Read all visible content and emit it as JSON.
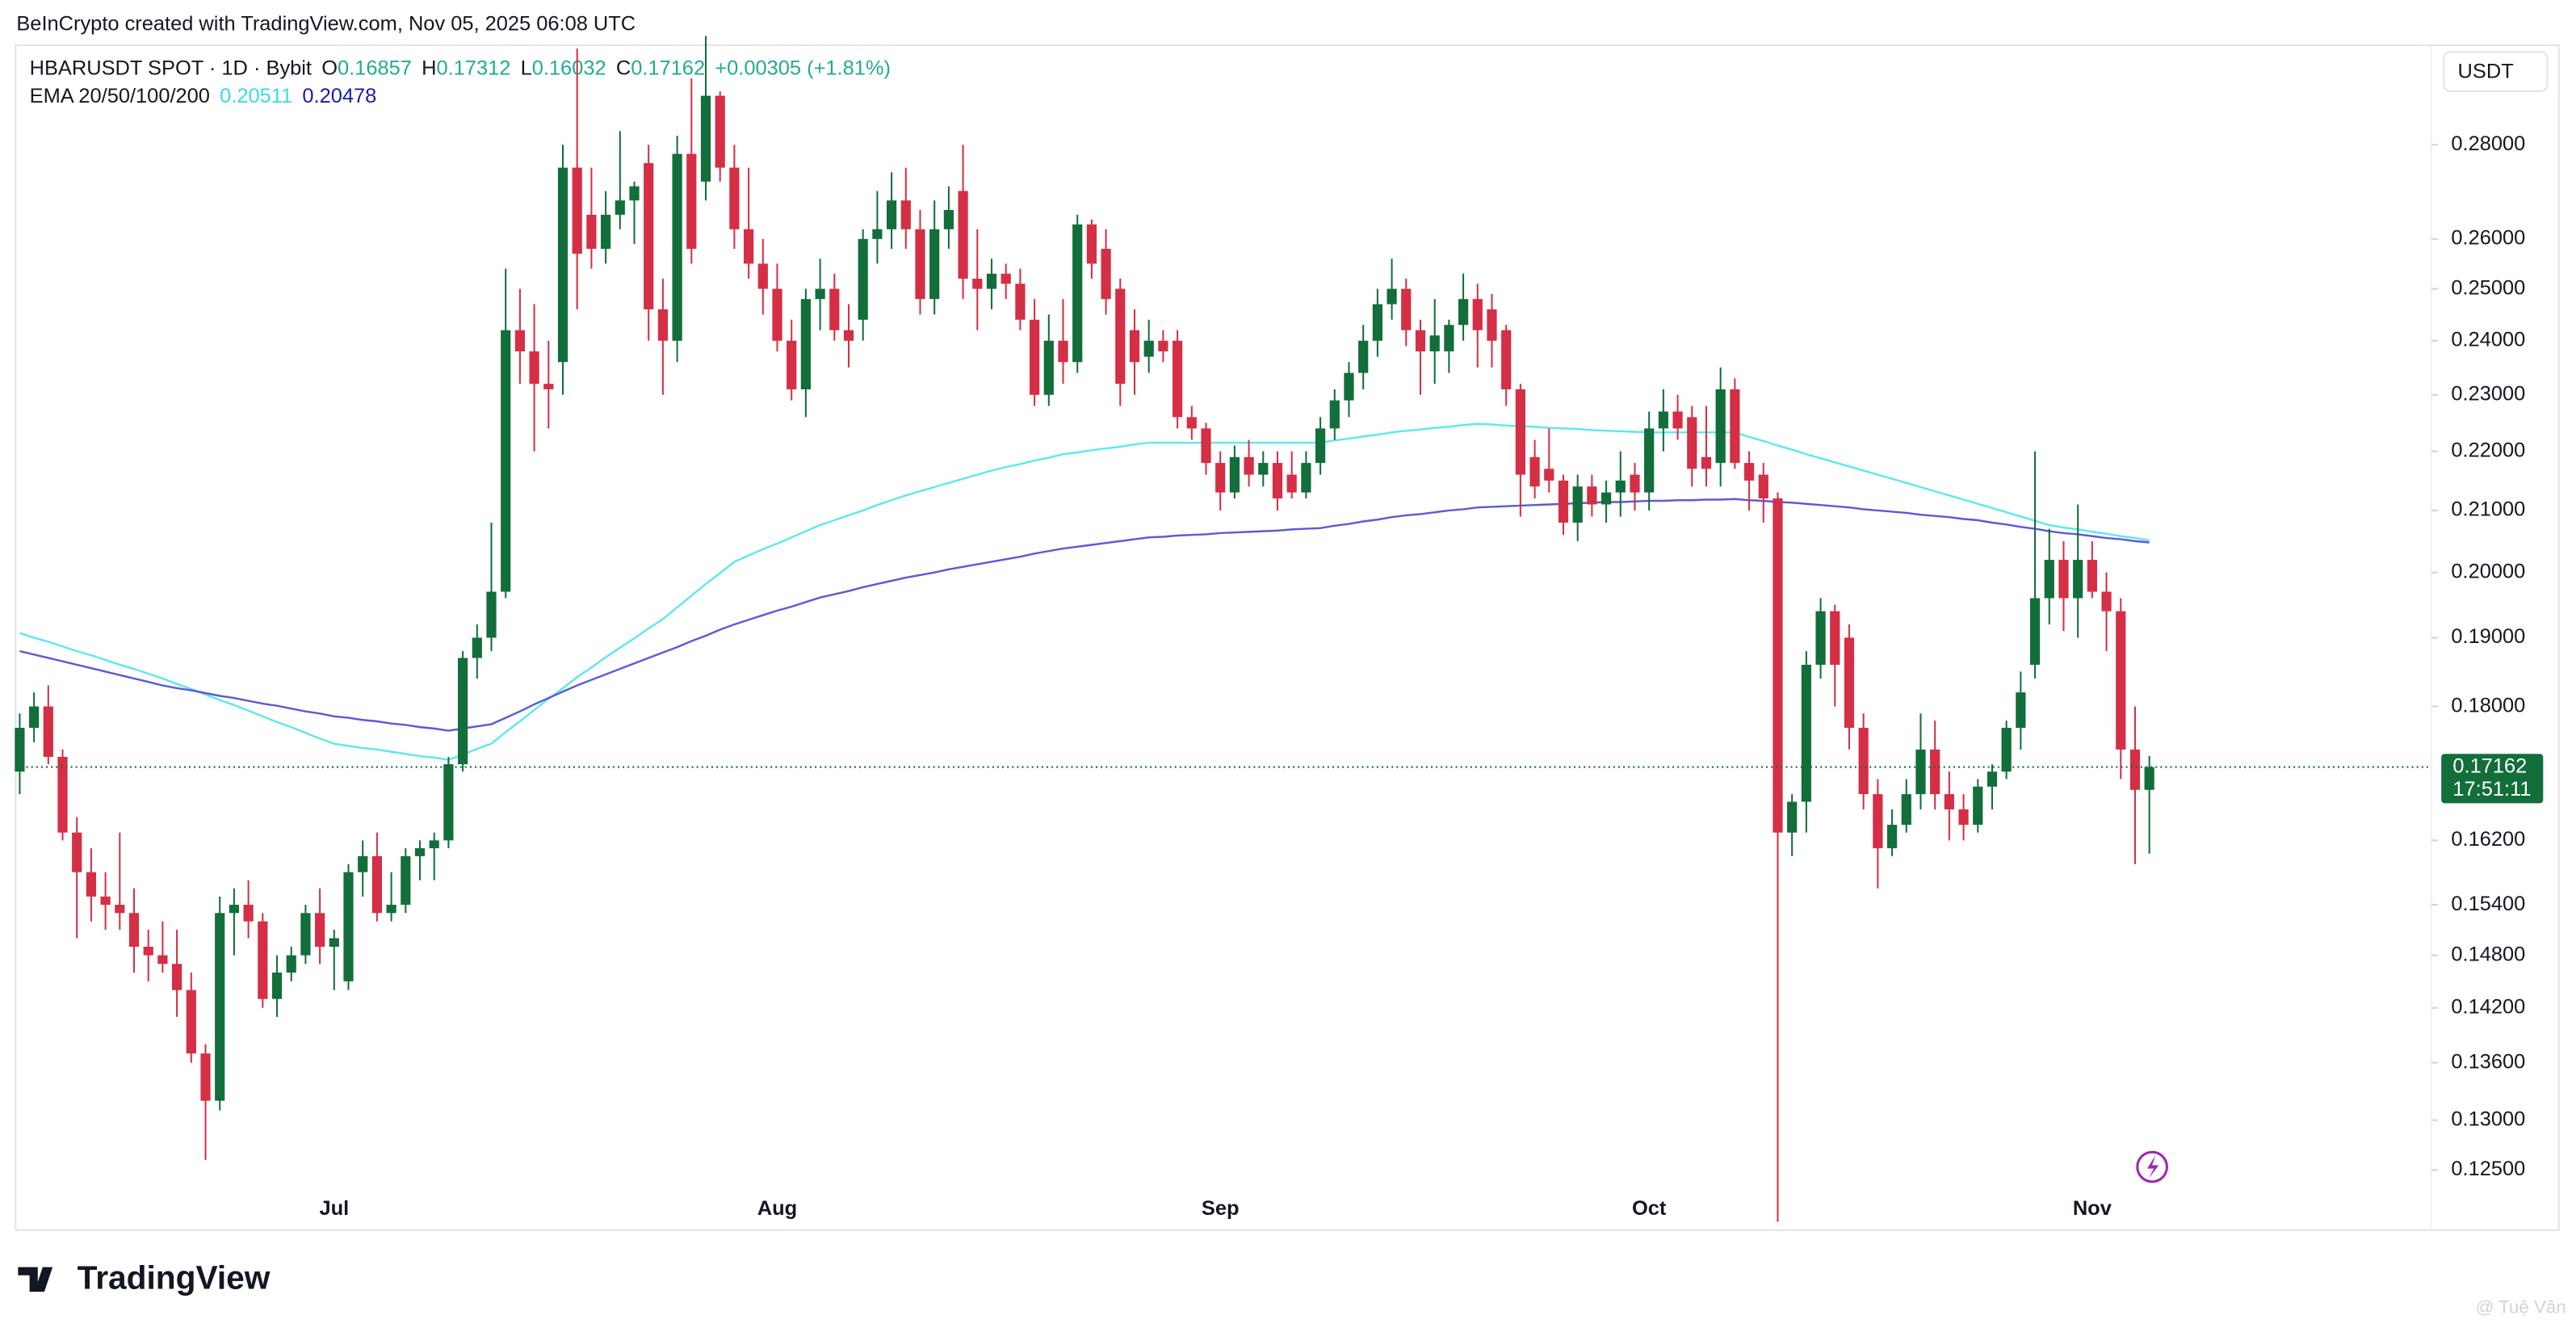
{
  "header": {
    "credit": "BeInCrypto created with TradingView.com, Nov 05, 2025 06:08 UTC"
  },
  "chart_data": {
    "type": "candlestick",
    "symbol": "HBARUSDT SPOT · 1D · Bybit",
    "ohlc_labels": [
      "O",
      "H",
      "L",
      "C"
    ],
    "change": "+0.00305 (+1.81%)",
    "indicator": "EMA 20/50/100/200",
    "currency": "USDT",
    "countdown": "17:51:11",
    "log_scale": true,
    "grid": false,
    "up_color": "#126e3a",
    "down_color": "#d42f45",
    "ylim": [
      0.1193,
      0.3026
    ],
    "yticks": [
      {
        "value": 0.28,
        "label": "0.28000"
      },
      {
        "value": 0.26,
        "label": "0.26000"
      },
      {
        "value": 0.25,
        "label": "0.25000"
      },
      {
        "value": 0.24,
        "label": "0.24000"
      },
      {
        "value": 0.23,
        "label": "0.23000"
      },
      {
        "value": 0.22,
        "label": "0.22000"
      },
      {
        "value": 0.21,
        "label": "0.21000"
      },
      {
        "value": 0.2,
        "label": "0.20000"
      },
      {
        "value": 0.19,
        "label": "0.19000"
      },
      {
        "value": 0.18,
        "label": "0.18000"
      },
      {
        "value": 0.162,
        "label": "0.16200"
      },
      {
        "value": 0.154,
        "label": "0.15400"
      },
      {
        "value": 0.148,
        "label": "0.14800"
      },
      {
        "value": 0.142,
        "label": "0.14200"
      },
      {
        "value": 0.136,
        "label": "0.13600"
      },
      {
        "value": 0.13,
        "label": "0.13000"
      },
      {
        "value": 0.125,
        "label": "0.12500"
      }
    ],
    "categories": [
      null,
      null,
      null,
      null,
      null,
      null,
      null,
      null,
      null,
      null,
      null,
      null,
      null,
      null,
      null,
      null,
      null,
      null,
      null,
      null,
      null,
      null,
      "Jul",
      null,
      null,
      null,
      null,
      null,
      null,
      null,
      null,
      null,
      null,
      null,
      null,
      null,
      null,
      null,
      null,
      null,
      null,
      null,
      null,
      null,
      null,
      null,
      null,
      null,
      null,
      null,
      null,
      null,
      null,
      "Aug",
      null,
      null,
      null,
      null,
      null,
      null,
      null,
      null,
      null,
      null,
      null,
      null,
      null,
      null,
      null,
      null,
      null,
      null,
      null,
      null,
      null,
      null,
      null,
      null,
      null,
      null,
      null,
      null,
      null,
      null,
      "Sep",
      null,
      null,
      null,
      null,
      null,
      null,
      null,
      null,
      null,
      null,
      null,
      null,
      null,
      null,
      null,
      null,
      null,
      null,
      null,
      null,
      null,
      null,
      null,
      null,
      null,
      null,
      null,
      null,
      null,
      "Oct",
      null,
      null,
      null,
      null,
      null,
      null,
      null,
      null,
      null,
      null,
      null,
      null,
      null,
      null,
      null,
      null,
      null,
      null,
      null,
      null,
      null,
      null,
      null,
      null,
      null,
      null,
      null,
      null,
      null,
      null,
      "Nov",
      null,
      null,
      null,
      null
    ],
    "open": [
      0.171,
      0.177,
      0.18,
      0.173,
      0.163,
      0.158,
      0.155,
      0.154,
      0.153,
      0.149,
      0.148,
      0.147,
      0.144,
      0.137,
      0.132,
      0.153,
      0.154,
      0.152,
      0.143,
      0.146,
      0.148,
      0.153,
      0.149,
      0.145,
      0.158,
      0.16,
      0.153,
      0.154,
      0.16,
      0.161,
      0.162,
      0.172,
      0.187,
      0.19,
      0.197,
      0.242,
      0.238,
      0.232,
      0.236,
      0.275,
      0.265,
      0.258,
      0.265,
      0.268,
      0.276,
      0.246,
      0.24,
      0.278,
      0.272,
      0.291,
      0.275,
      0.262,
      0.255,
      0.25,
      0.24,
      0.231,
      0.248,
      0.25,
      0.242,
      0.244,
      0.26,
      0.262,
      0.268,
      0.262,
      0.248,
      0.262,
      0.27,
      0.252,
      0.25,
      0.253,
      0.251,
      0.244,
      0.23,
      0.24,
      0.236,
      0.263,
      0.258,
      0.25,
      0.242,
      0.237,
      0.24,
      0.24,
      0.226,
      0.224,
      0.218,
      0.213,
      0.219,
      0.216,
      0.218,
      0.216,
      0.213,
      0.218,
      0.224,
      0.229,
      0.234,
      0.24,
      0.247,
      0.25,
      0.242,
      0.238,
      0.238,
      0.243,
      0.248,
      0.246,
      0.242,
      0.231,
      0.219,
      0.217,
      0.215,
      0.208,
      0.214,
      0.211,
      0.213,
      0.216,
      0.213,
      0.224,
      0.227,
      0.226,
      0.219,
      0.218,
      0.231,
      0.218,
      0.216,
      0.212,
      0.163,
      0.167,
      0.186,
      0.194,
      0.19,
      0.177,
      0.168,
      0.161,
      0.164,
      0.168,
      0.174,
      0.168,
      0.166,
      0.164,
      0.169,
      0.171,
      0.177,
      0.186,
      0.196,
      0.202,
      0.196,
      0.202,
      0.197,
      0.194,
      0.174,
      0.16857
    ],
    "high": [
      0.179,
      0.182,
      0.183,
      0.174,
      0.165,
      0.161,
      0.158,
      0.163,
      0.156,
      0.151,
      0.152,
      0.151,
      0.146,
      0.138,
      0.155,
      0.156,
      0.157,
      0.153,
      0.148,
      0.149,
      0.154,
      0.156,
      0.151,
      0.159,
      0.162,
      0.163,
      0.158,
      0.161,
      0.162,
      0.163,
      0.173,
      0.188,
      0.192,
      0.208,
      0.254,
      0.25,
      0.247,
      0.24,
      0.28,
      0.302,
      0.275,
      0.27,
      0.283,
      0.272,
      0.28,
      0.252,
      0.282,
      0.295,
      0.305,
      0.292,
      0.28,
      0.275,
      0.26,
      0.255,
      0.244,
      0.25,
      0.256,
      0.253,
      0.247,
      0.262,
      0.27,
      0.274,
      0.275,
      0.266,
      0.268,
      0.271,
      0.28,
      0.262,
      0.256,
      0.255,
      0.254,
      0.248,
      0.245,
      0.248,
      0.265,
      0.264,
      0.262,
      0.252,
      0.246,
      0.244,
      0.242,
      0.242,
      0.228,
      0.225,
      0.22,
      0.221,
      0.222,
      0.22,
      0.22,
      0.22,
      0.22,
      0.226,
      0.231,
      0.236,
      0.243,
      0.25,
      0.256,
      0.252,
      0.244,
      0.248,
      0.244,
      0.253,
      0.251,
      0.249,
      0.243,
      0.232,
      0.222,
      0.224,
      0.216,
      0.216,
      0.216,
      0.215,
      0.22,
      0.218,
      0.227,
      0.231,
      0.23,
      0.228,
      0.228,
      0.235,
      0.233,
      0.22,
      0.218,
      0.213,
      0.168,
      0.188,
      0.196,
      0.195,
      0.192,
      0.179,
      0.17,
      0.166,
      0.17,
      0.179,
      0.178,
      0.171,
      0.168,
      0.17,
      0.172,
      0.178,
      0.185,
      0.22,
      0.207,
      0.205,
      0.211,
      0.205,
      0.2,
      0.196,
      0.18,
      0.17312
    ],
    "low": [
      0.168,
      0.175,
      0.172,
      0.162,
      0.15,
      0.152,
      0.151,
      0.151,
      0.146,
      0.145,
      0.146,
      0.141,
      0.136,
      0.126,
      0.131,
      0.148,
      0.15,
      0.142,
      0.141,
      0.145,
      0.147,
      0.147,
      0.144,
      0.144,
      0.155,
      0.152,
      0.152,
      0.153,
      0.157,
      0.157,
      0.161,
      0.171,
      0.184,
      0.188,
      0.196,
      0.232,
      0.22,
      0.224,
      0.23,
      0.246,
      0.254,
      0.255,
      0.262,
      0.259,
      0.24,
      0.23,
      0.236,
      0.255,
      0.268,
      0.272,
      0.258,
      0.252,
      0.245,
      0.238,
      0.229,
      0.226,
      0.242,
      0.24,
      0.235,
      0.24,
      0.255,
      0.258,
      0.258,
      0.245,
      0.245,
      0.258,
      0.248,
      0.242,
      0.246,
      0.248,
      0.242,
      0.228,
      0.228,
      0.232,
      0.234,
      0.252,
      0.245,
      0.228,
      0.23,
      0.234,
      0.236,
      0.224,
      0.222,
      0.216,
      0.21,
      0.212,
      0.214,
      0.214,
      0.21,
      0.212,
      0.212,
      0.216,
      0.222,
      0.226,
      0.231,
      0.237,
      0.244,
      0.239,
      0.23,
      0.232,
      0.234,
      0.24,
      0.235,
      0.235,
      0.228,
      0.209,
      0.212,
      0.213,
      0.206,
      0.205,
      0.209,
      0.208,
      0.209,
      0.21,
      0.21,
      0.22,
      0.222,
      0.214,
      0.214,
      0.214,
      0.217,
      0.21,
      0.208,
      0.12,
      0.16,
      0.163,
      0.184,
      0.18,
      0.174,
      0.166,
      0.156,
      0.16,
      0.163,
      0.166,
      0.166,
      0.162,
      0.162,
      0.163,
      0.166,
      0.17,
      0.174,
      0.184,
      0.192,
      0.191,
      0.19,
      0.196,
      0.188,
      0.17,
      0.159,
      0.16032
    ],
    "close": [
      0.177,
      0.18,
      0.173,
      0.163,
      0.158,
      0.155,
      0.154,
      0.153,
      0.149,
      0.148,
      0.147,
      0.144,
      0.137,
      0.132,
      0.153,
      0.154,
      0.152,
      0.143,
      0.146,
      0.148,
      0.153,
      0.149,
      0.15,
      0.158,
      0.16,
      0.153,
      0.154,
      0.16,
      0.161,
      0.162,
      0.172,
      0.187,
      0.19,
      0.197,
      0.242,
      0.238,
      0.232,
      0.231,
      0.275,
      0.257,
      0.258,
      0.265,
      0.268,
      0.271,
      0.246,
      0.24,
      0.278,
      0.258,
      0.291,
      0.275,
      0.262,
      0.255,
      0.25,
      0.24,
      0.231,
      0.248,
      0.25,
      0.242,
      0.24,
      0.26,
      0.262,
      0.268,
      0.262,
      0.248,
      0.262,
      0.266,
      0.252,
      0.25,
      0.253,
      0.251,
      0.244,
      0.23,
      0.24,
      0.236,
      0.263,
      0.255,
      0.248,
      0.232,
      0.236,
      0.24,
      0.238,
      0.226,
      0.224,
      0.218,
      0.213,
      0.219,
      0.216,
      0.218,
      0.212,
      0.213,
      0.218,
      0.224,
      0.229,
      0.234,
      0.24,
      0.247,
      0.25,
      0.242,
      0.238,
      0.241,
      0.243,
      0.248,
      0.242,
      0.24,
      0.231,
      0.216,
      0.214,
      0.215,
      0.208,
      0.214,
      0.211,
      0.213,
      0.215,
      0.213,
      0.224,
      0.227,
      0.224,
      0.217,
      0.217,
      0.231,
      0.218,
      0.215,
      0.212,
      0.163,
      0.167,
      0.186,
      0.194,
      0.186,
      0.177,
      0.168,
      0.161,
      0.164,
      0.168,
      0.174,
      0.168,
      0.166,
      0.164,
      0.169,
      0.171,
      0.177,
      0.182,
      0.196,
      0.202,
      0.196,
      0.202,
      0.197,
      0.194,
      0.174,
      0.16857,
      0.17162
    ],
    "series": [
      {
        "color": "#5ee8f0",
        "values": [
          0.1907,
          0.19,
          0.1894,
          0.1887,
          0.188,
          0.1874,
          0.1867,
          0.186,
          0.1854,
          0.1847,
          0.184,
          0.1832,
          0.1825,
          0.1817,
          0.1809,
          0.1802,
          0.1794,
          0.1786,
          0.1778,
          0.1771,
          0.1763,
          0.1755,
          0.1748,
          0.1745,
          0.1742,
          0.174,
          0.1737,
          0.1734,
          0.1731,
          0.1729,
          0.1726,
          0.1733,
          0.1741,
          0.1748,
          0.1764,
          0.1779,
          0.1795,
          0.1811,
          0.1826,
          0.1842,
          0.1856,
          0.1871,
          0.1885,
          0.1899,
          0.1914,
          0.1928,
          0.1946,
          0.1964,
          0.1982,
          0.1999,
          0.2017,
          0.2027,
          0.2037,
          0.2046,
          0.2056,
          0.2066,
          0.2076,
          0.2084,
          0.2092,
          0.21,
          0.2109,
          0.2117,
          0.2125,
          0.2132,
          0.2139,
          0.2146,
          0.2153,
          0.216,
          0.2167,
          0.2173,
          0.2178,
          0.2184,
          0.2189,
          0.2195,
          0.2198,
          0.2202,
          0.2205,
          0.2208,
          0.2212,
          0.2215,
          0.2215,
          0.2215,
          0.2215,
          0.2215,
          0.2215,
          0.2215,
          0.2215,
          0.2215,
          0.2215,
          0.2215,
          0.2215,
          0.2215,
          0.2219,
          0.2222,
          0.2226,
          0.2229,
          0.2233,
          0.2236,
          0.2238,
          0.2241,
          0.2243,
          0.2246,
          0.2248,
          0.2247,
          0.2245,
          0.2244,
          0.2243,
          0.2241,
          0.224,
          0.2239,
          0.2237,
          0.2236,
          0.2235,
          0.2234,
          0.2233,
          0.2233,
          0.2233,
          0.2233,
          0.2233,
          0.2233,
          0.2233,
          0.2225,
          0.2218,
          0.221,
          0.2203,
          0.2195,
          0.2188,
          0.2181,
          0.2174,
          0.2167,
          0.216,
          0.2153,
          0.2146,
          0.2139,
          0.2132,
          0.2125,
          0.2118,
          0.2111,
          0.2104,
          0.2097,
          0.209,
          0.2083,
          0.2076,
          0.2072,
          0.2069,
          0.2065,
          0.2062,
          0.2058,
          0.2055,
          0.20511
        ]
      },
      {
        "color": "#5b5bd6",
        "values": [
          0.188,
          0.1875,
          0.187,
          0.1865,
          0.186,
          0.1855,
          0.185,
          0.1845,
          0.184,
          0.1835,
          0.183,
          0.1826,
          0.1823,
          0.1819,
          0.1815,
          0.1812,
          0.1808,
          0.1804,
          0.1801,
          0.1797,
          0.1793,
          0.179,
          0.1786,
          0.1784,
          0.1781,
          0.1779,
          0.1776,
          0.1774,
          0.1771,
          0.1769,
          0.1766,
          0.1769,
          0.1772,
          0.1775,
          0.1784,
          0.1793,
          0.1803,
          0.1812,
          0.1821,
          0.183,
          0.1838,
          0.1846,
          0.1854,
          0.1862,
          0.187,
          0.1878,
          0.1886,
          0.1895,
          0.1903,
          0.1912,
          0.192,
          0.1927,
          0.1934,
          0.1941,
          0.1947,
          0.1954,
          0.1961,
          0.1966,
          0.1971,
          0.1977,
          0.1982,
          0.1987,
          0.1992,
          0.1996,
          0.2,
          0.2005,
          0.2009,
          0.2013,
          0.2017,
          0.2021,
          0.2025,
          0.203,
          0.2034,
          0.2038,
          0.2041,
          0.2044,
          0.2047,
          0.205,
          0.2053,
          0.2056,
          0.2057,
          0.2059,
          0.206,
          0.2061,
          0.2063,
          0.2064,
          0.2065,
          0.2066,
          0.2067,
          0.2069,
          0.207,
          0.2071,
          0.2075,
          0.2078,
          0.2082,
          0.2085,
          0.2089,
          0.2092,
          0.2094,
          0.2097,
          0.21,
          0.2102,
          0.2105,
          0.2106,
          0.2107,
          0.2108,
          0.2109,
          0.211,
          0.2111,
          0.2112,
          0.2113,
          0.2114,
          0.2114,
          0.2115,
          0.2116,
          0.2116,
          0.2117,
          0.2117,
          0.2118,
          0.2118,
          0.2119,
          0.2117,
          0.2116,
          0.2114,
          0.2113,
          0.2111,
          0.2109,
          0.2107,
          0.2105,
          0.2102,
          0.21,
          0.2098,
          0.2096,
          0.2093,
          0.2091,
          0.2089,
          0.2086,
          0.2084,
          0.208,
          0.2077,
          0.2073,
          0.207,
          0.2066,
          0.2063,
          0.2061,
          0.2058,
          0.2055,
          0.2053,
          0.205,
          0.20478
        ]
      }
    ]
  },
  "footer": {
    "brand": "TradingView",
    "watermark": "@ Tuệ Vân"
  }
}
